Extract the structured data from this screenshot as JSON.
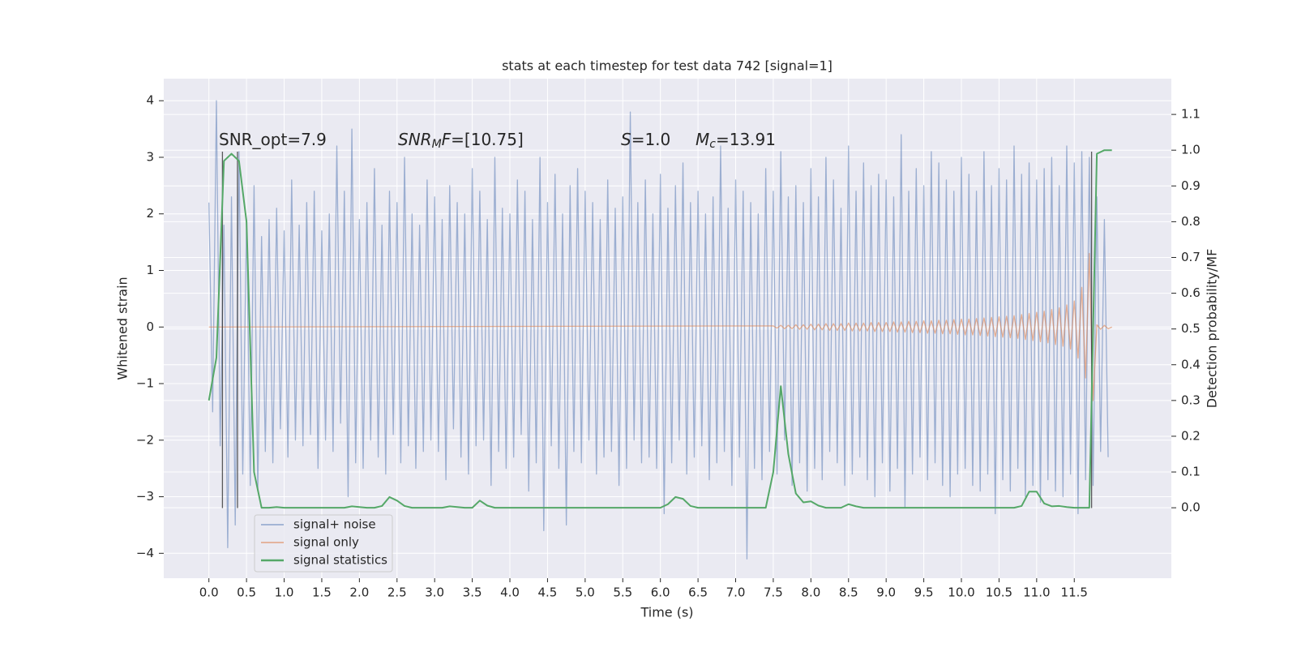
{
  "chart_data": {
    "type": "line",
    "title": "stats at each timestep for test data 742 [signal=1]",
    "x_label": "Time (s)",
    "y_label": "Whitened strain",
    "y2_label": "Detection probability/MF",
    "xlim": [
      -0.6,
      12.79
    ],
    "ylim": [
      -4.44,
      4.39
    ],
    "y2lim": [
      -0.197,
      1.2
    ],
    "xticks": [
      {
        "value": 0,
        "label": "0.0"
      },
      0.5,
      {
        "value": 1,
        "label": "1.0"
      },
      1.5,
      {
        "value": 2,
        "label": "2.0"
      },
      2.5,
      {
        "value": 3,
        "label": "3.0"
      },
      3.5,
      {
        "value": 4,
        "label": "4.0"
      },
      4.5,
      {
        "value": 5,
        "label": "5.0"
      },
      5.5,
      {
        "value": 6,
        "label": "6.0"
      },
      6.5,
      {
        "value": 7,
        "label": "7.0"
      },
      7.5,
      {
        "value": 8,
        "label": "8.0"
      },
      8.5,
      {
        "value": 9,
        "label": "9.0"
      },
      9.5,
      {
        "value": 10,
        "label": "10.0"
      },
      10.5,
      {
        "value": 11,
        "label": "11.0"
      },
      11.5
    ],
    "yticks": [
      {
        "value": -4,
        "label": "−4"
      },
      {
        "value": -3,
        "label": "−3"
      },
      {
        "value": -2,
        "label": "−2"
      },
      {
        "value": -1,
        "label": "−1"
      },
      0,
      1,
      2,
      3,
      4
    ],
    "y2ticks": [
      {
        "value": 0,
        "label": "0.0"
      },
      0.1,
      0.2,
      0.3,
      0.4,
      0.5,
      0.6,
      0.7,
      0.8,
      0.9,
      {
        "value": 1,
        "label": "1.0"
      },
      1.1
    ],
    "grid": true,
    "legend": "lower left",
    "annotations": [
      [
        "SNR_opt=7.9"
      ],
      [
        "SNR",
        "M",
        "F",
        "=[10.75]"
      ],
      [
        "S",
        "=1.0"
      ],
      [
        "M",
        "c",
        "=13.91"
      ]
    ],
    "vlines": {
      "x": [
        0.18,
        0.38,
        11.73
      ],
      "ymin": -3.2,
      "ymax": 3.1,
      "color": "#333333"
    },
    "series": [
      {
        "name": "signal+ noise",
        "color": "#4c72b0",
        "x": [
          0,
          0.05,
          0.1,
          0.15,
          0.2,
          0.25,
          0.3,
          0.35,
          0.4,
          0.45,
          0.5,
          0.55,
          0.6,
          0.65,
          0.7,
          0.75,
          0.8,
          0.85,
          0.9,
          0.95,
          1,
          1.05,
          1.1,
          1.15,
          1.2,
          1.25,
          1.3,
          1.35,
          1.4,
          1.45,
          1.5,
          1.55,
          1.6,
          1.65,
          1.7,
          1.75,
          1.8,
          1.85,
          1.9,
          1.95,
          2,
          2.05,
          2.1,
          2.15,
          2.2,
          2.25,
          2.3,
          2.35,
          2.4,
          2.45,
          2.5,
          2.55,
          2.6,
          2.65,
          2.7,
          2.75,
          2.8,
          2.85,
          2.9,
          2.95,
          3,
          3.05,
          3.1,
          3.15,
          3.2,
          3.25,
          3.3,
          3.35,
          3.4,
          3.45,
          3.5,
          3.55,
          3.6,
          3.65,
          3.7,
          3.75,
          3.8,
          3.85,
          3.9,
          3.95,
          4,
          4.05,
          4.1,
          4.15,
          4.2,
          4.25,
          4.3,
          4.35,
          4.4,
          4.45,
          4.5,
          4.55,
          4.6,
          4.65,
          4.7,
          4.75,
          4.8,
          4.85,
          4.9,
          4.95,
          5,
          5.05,
          5.1,
          5.15,
          5.2,
          5.25,
          5.3,
          5.35,
          5.4,
          5.45,
          5.5,
          5.55,
          5.6,
          5.65,
          5.7,
          5.75,
          5.8,
          5.85,
          5.9,
          5.95,
          6,
          6.05,
          6.1,
          6.15,
          6.2,
          6.25,
          6.3,
          6.35,
          6.4,
          6.45,
          6.5,
          6.55,
          6.6,
          6.65,
          6.7,
          6.75,
          6.8,
          6.85,
          6.9,
          6.95,
          7,
          7.05,
          7.1,
          7.15,
          7.2,
          7.25,
          7.3,
          7.35,
          7.4,
          7.45,
          7.5,
          7.55,
          7.6,
          7.65,
          7.7,
          7.75,
          7.8,
          7.85,
          7.9,
          7.95,
          8,
          8.05,
          8.1,
          8.15,
          8.2,
          8.25,
          8.3,
          8.35,
          8.4,
          8.45,
          8.5,
          8.55,
          8.6,
          8.65,
          8.7,
          8.75,
          8.8,
          8.85,
          8.9,
          8.95,
          9,
          9.05,
          9.1,
          9.15,
          9.2,
          9.25,
          9.3,
          9.35,
          9.4,
          9.45,
          9.5,
          9.55,
          9.6,
          9.65,
          9.7,
          9.75,
          9.8,
          9.85,
          9.9,
          9.95,
          10,
          10.05,
          10.1,
          10.15,
          10.2,
          10.25,
          10.3,
          10.35,
          10.4,
          10.45,
          10.5,
          10.55,
          10.6,
          10.65,
          10.7,
          10.75,
          10.8,
          10.85,
          10.9,
          10.95,
          11,
          11.05,
          11.1,
          11.15,
          11.2,
          11.25,
          11.3,
          11.35,
          11.4,
          11.45,
          11.5,
          11.55,
          11.6,
          11.65,
          11.7,
          11.75,
          11.8,
          11.85,
          11.9,
          11.95
        ],
        "values": [
          2.2,
          -1.5,
          4.0,
          -2.1,
          1.8,
          -3.9,
          2.3,
          -3.5,
          3.1,
          -2.6,
          1.9,
          -2.8,
          2.5,
          -2.9,
          1.6,
          -2.2,
          1.9,
          -2.4,
          2.1,
          -1.8,
          1.7,
          -2.3,
          2.6,
          -2.0,
          1.8,
          -2.1,
          2.2,
          -1.9,
          2.4,
          -2.5,
          1.7,
          -2.0,
          2.0,
          -2.2,
          3.2,
          -1.7,
          2.4,
          -3.0,
          3.5,
          -2.4,
          1.9,
          -2.5,
          2.2,
          -2.0,
          2.8,
          -2.3,
          1.8,
          -2.6,
          2.4,
          -1.9,
          2.2,
          -2.4,
          3.0,
          -2.1,
          2.0,
          -2.5,
          1.8,
          -2.2,
          2.6,
          -2.0,
          2.3,
          -2.2,
          1.9,
          -2.7,
          2.5,
          -1.8,
          2.2,
          -2.3,
          2.0,
          -2.6,
          2.8,
          -2.1,
          2.4,
          -2.0,
          1.9,
          -2.8,
          3.0,
          -2.2,
          2.1,
          -2.5,
          2.0,
          -2.3,
          2.6,
          -1.9,
          2.4,
          -2.9,
          1.9,
          -2.4,
          3.0,
          -3.6,
          2.2,
          -2.1,
          2.7,
          -2.5,
          2.0,
          -3.5,
          2.5,
          -2.2,
          2.8,
          -2.4,
          2.4,
          -2.0,
          2.2,
          -2.6,
          1.9,
          -2.3,
          2.6,
          -2.2,
          2.1,
          -2.8,
          2.3,
          -2.5,
          3.8,
          -2.0,
          2.2,
          -2.4,
          2.6,
          -2.3,
          2.0,
          -2.5,
          2.7,
          -3.3,
          2.1,
          -2.4,
          2.5,
          -2.0,
          2.9,
          -2.6,
          2.2,
          -2.3,
          2.4,
          -2.1,
          2.0,
          -2.7,
          2.3,
          -2.4,
          3.2,
          -2.2,
          2.1,
          -2.8,
          2.6,
          -2.3,
          2.4,
          -4.1,
          2.2,
          -2.5,
          2.0,
          -2.7,
          2.8,
          -2.2,
          2.4,
          -2.6,
          3.1,
          -2.0,
          2.3,
          -2.8,
          2.5,
          -2.4,
          2.2,
          -2.9,
          2.8,
          -2.5,
          2.3,
          -2.7,
          3.0,
          -2.2,
          2.6,
          -2.4,
          2.1,
          -2.8,
          3.2,
          -2.6,
          2.4,
          -2.3,
          2.9,
          -2.7,
          2.5,
          -3.0,
          2.7,
          -2.4,
          2.6,
          -2.9,
          2.3,
          -2.5,
          3.4,
          -3.2,
          2.4,
          -2.6,
          2.8,
          -2.3,
          2.5,
          -2.7,
          3.1,
          -2.4,
          2.9,
          -2.8,
          2.6,
          -3.0,
          2.4,
          -2.6,
          3.0,
          -2.5,
          2.7,
          -2.8,
          2.4,
          -2.9,
          3.1,
          -2.6,
          2.5,
          -3.3,
          2.8,
          -2.7,
          2.6,
          -2.9,
          3.2,
          -2.5,
          2.7,
          -3.0,
          2.9,
          -2.8,
          2.6,
          -3.1,
          2.8,
          -2.7,
          3.0,
          -2.9,
          2.5,
          -3.0,
          3.2,
          -2.6,
          2.9,
          -3.3,
          3.1,
          -2.7,
          3.0,
          -2.8,
          2.3,
          -2.2,
          1.9,
          -2.3
        ]
      },
      {
        "name": "signal only",
        "color": "#dd8452",
        "x": [
          0,
          7.5,
          7.55,
          7.6,
          7.65,
          7.7,
          7.75,
          7.8,
          7.85,
          7.9,
          7.95,
          8,
          8.05,
          8.1,
          8.15,
          8.2,
          8.25,
          8.3,
          8.35,
          8.4,
          8.45,
          8.5,
          8.55,
          8.6,
          8.65,
          8.7,
          8.75,
          8.8,
          8.85,
          8.9,
          8.95,
          9,
          9.05,
          9.1,
          9.15,
          9.2,
          9.25,
          9.3,
          9.35,
          9.4,
          9.45,
          9.5,
          9.55,
          9.6,
          9.65,
          9.7,
          9.75,
          9.8,
          9.85,
          9.9,
          9.95,
          10,
          10.05,
          10.1,
          10.15,
          10.2,
          10.25,
          10.3,
          10.35,
          10.4,
          10.45,
          10.5,
          10.55,
          10.6,
          10.65,
          10.7,
          10.75,
          10.8,
          10.85,
          10.9,
          10.95,
          11,
          11.05,
          11.1,
          11.15,
          11.2,
          11.25,
          11.3,
          11.35,
          11.4,
          11.45,
          11.5,
          11.55,
          11.6,
          11.65,
          11.7,
          11.75,
          11.8,
          11.85,
          11.9,
          11.95,
          12
        ],
        "values": [
          0,
          0.02,
          -0.02,
          0.03,
          -0.03,
          0.03,
          -0.03,
          0.04,
          -0.04,
          0.04,
          -0.04,
          0.05,
          -0.05,
          0.05,
          -0.05,
          0.06,
          -0.06,
          0.06,
          -0.06,
          0.06,
          -0.06,
          0.07,
          -0.07,
          0.07,
          -0.07,
          0.07,
          -0.07,
          0.08,
          -0.08,
          0.08,
          -0.08,
          0.08,
          -0.08,
          0.09,
          -0.09,
          0.09,
          -0.09,
          0.1,
          -0.1,
          0.1,
          -0.1,
          0.11,
          -0.11,
          0.11,
          -0.11,
          0.12,
          -0.12,
          0.12,
          -0.12,
          0.13,
          -0.13,
          0.14,
          -0.14,
          0.14,
          -0.14,
          0.15,
          -0.15,
          0.16,
          -0.16,
          0.17,
          -0.17,
          0.18,
          -0.18,
          0.19,
          -0.19,
          0.2,
          -0.2,
          0.22,
          -0.22,
          0.24,
          -0.24,
          0.26,
          -0.26,
          0.28,
          -0.28,
          0.31,
          -0.31,
          0.34,
          -0.34,
          0.39,
          -0.39,
          0.46,
          -0.55,
          0.7,
          -0.9,
          1.3,
          -1.3,
          0.04,
          -0.04,
          0.03,
          -0.03,
          0
        ]
      },
      {
        "name": "signal statistics",
        "color": "#55a868",
        "axis": "y2",
        "x": [
          0,
          0.1,
          0.2,
          0.3,
          0.4,
          0.5,
          0.6,
          0.7,
          0.8,
          0.9,
          1,
          1.1,
          1.2,
          1.3,
          1.4,
          1.5,
          1.6,
          1.7,
          1.8,
          1.9,
          2,
          2.1,
          2.2,
          2.3,
          2.4,
          2.5,
          2.6,
          2.7,
          2.8,
          2.9,
          3,
          3.1,
          3.2,
          3.3,
          3.4,
          3.5,
          3.6,
          3.7,
          3.8,
          3.9,
          4,
          4.1,
          4.2,
          4.3,
          4.4,
          4.5,
          4.6,
          4.7,
          4.8,
          4.9,
          5,
          5.1,
          5.2,
          5.3,
          5.4,
          5.5,
          5.6,
          5.7,
          5.8,
          5.9,
          6,
          6.1,
          6.2,
          6.3,
          6.4,
          6.5,
          6.6,
          6.7,
          6.8,
          6.9,
          7,
          7.1,
          7.2,
          7.3,
          7.4,
          7.5,
          7.6,
          7.7,
          7.8,
          7.9,
          8,
          8.1,
          8.2,
          8.3,
          8.4,
          8.5,
          8.6,
          8.7,
          8.8,
          8.9,
          9,
          9.1,
          9.2,
          9.3,
          9.4,
          9.5,
          9.6,
          9.7,
          9.8,
          9.9,
          10,
          10.1,
          10.2,
          10.3,
          10.4,
          10.5,
          10.6,
          10.7,
          10.8,
          10.9,
          11,
          11.1,
          11.2,
          11.3,
          11.4,
          11.5,
          11.6,
          11.7,
          11.8,
          11.9,
          12
        ],
        "values": [
          0.3,
          0.42,
          0.97,
          0.99,
          0.97,
          0.8,
          0.1,
          0.0,
          0.0,
          0.002,
          0.0,
          0.0,
          0.0,
          0.0,
          0.0,
          0.0,
          0.0,
          0.0,
          0.0,
          0.004,
          0.002,
          0.0,
          0.0,
          0.005,
          0.03,
          0.02,
          0.005,
          0.0,
          0.0,
          0.0,
          0.0,
          0.0,
          0.004,
          0.002,
          0.0,
          0.0,
          0.02,
          0.006,
          0.0,
          0.0,
          0.0,
          0.0,
          0.0,
          0.0,
          0.0,
          0.0,
          0.0,
          0.0,
          0.0,
          0.0,
          0.0,
          0.0,
          0.0,
          0.0,
          0.0,
          0.0,
          0.0,
          0.0,
          0.0,
          0.0,
          0.0,
          0.01,
          0.03,
          0.025,
          0.005,
          0.0,
          0.0,
          0.0,
          0.0,
          0.0,
          0.0,
          0.0,
          0.0,
          0.0,
          0.0,
          0.1,
          0.34,
          0.15,
          0.04,
          0.015,
          0.018,
          0.006,
          0.0,
          0.0,
          0.0,
          0.01,
          0.004,
          0.0,
          0.0,
          0.0,
          0.0,
          0.0,
          0.0,
          0.0,
          0.0,
          0.0,
          0.0,
          0.0,
          0.0,
          0.0,
          0.0,
          0.0,
          0.0,
          0.0,
          0.0,
          0.0,
          0.0,
          0.0,
          0.005,
          0.045,
          0.045,
          0.012,
          0.004,
          0.005,
          0.002,
          0.0,
          0.0,
          0.0,
          0.99,
          1.0,
          1.0
        ]
      }
    ]
  }
}
